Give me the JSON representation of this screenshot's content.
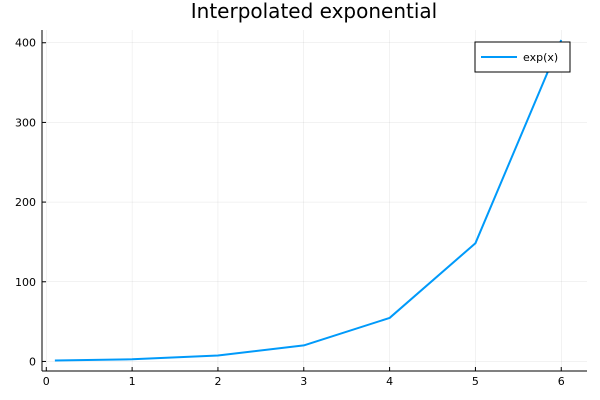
{
  "chart_data": {
    "type": "line",
    "title": "Interpolated exponential",
    "xlabel": "",
    "ylabel": "",
    "xlim": [
      -0.05,
      6.3
    ],
    "ylim": [
      -12,
      416
    ],
    "xticks": [
      0,
      1,
      2,
      3,
      4,
      5,
      6
    ],
    "yticks": [
      0,
      100,
      200,
      300,
      400
    ],
    "grid": true,
    "legend_position": "top-right",
    "series": [
      {
        "name": "exp(x)",
        "color": "#009AFA",
        "x": [
          0.1,
          1,
          2,
          3,
          4,
          5,
          6
        ],
        "y": [
          1.1,
          2.7,
          7.4,
          20.1,
          54.6,
          148.4,
          403.4
        ]
      }
    ]
  }
}
